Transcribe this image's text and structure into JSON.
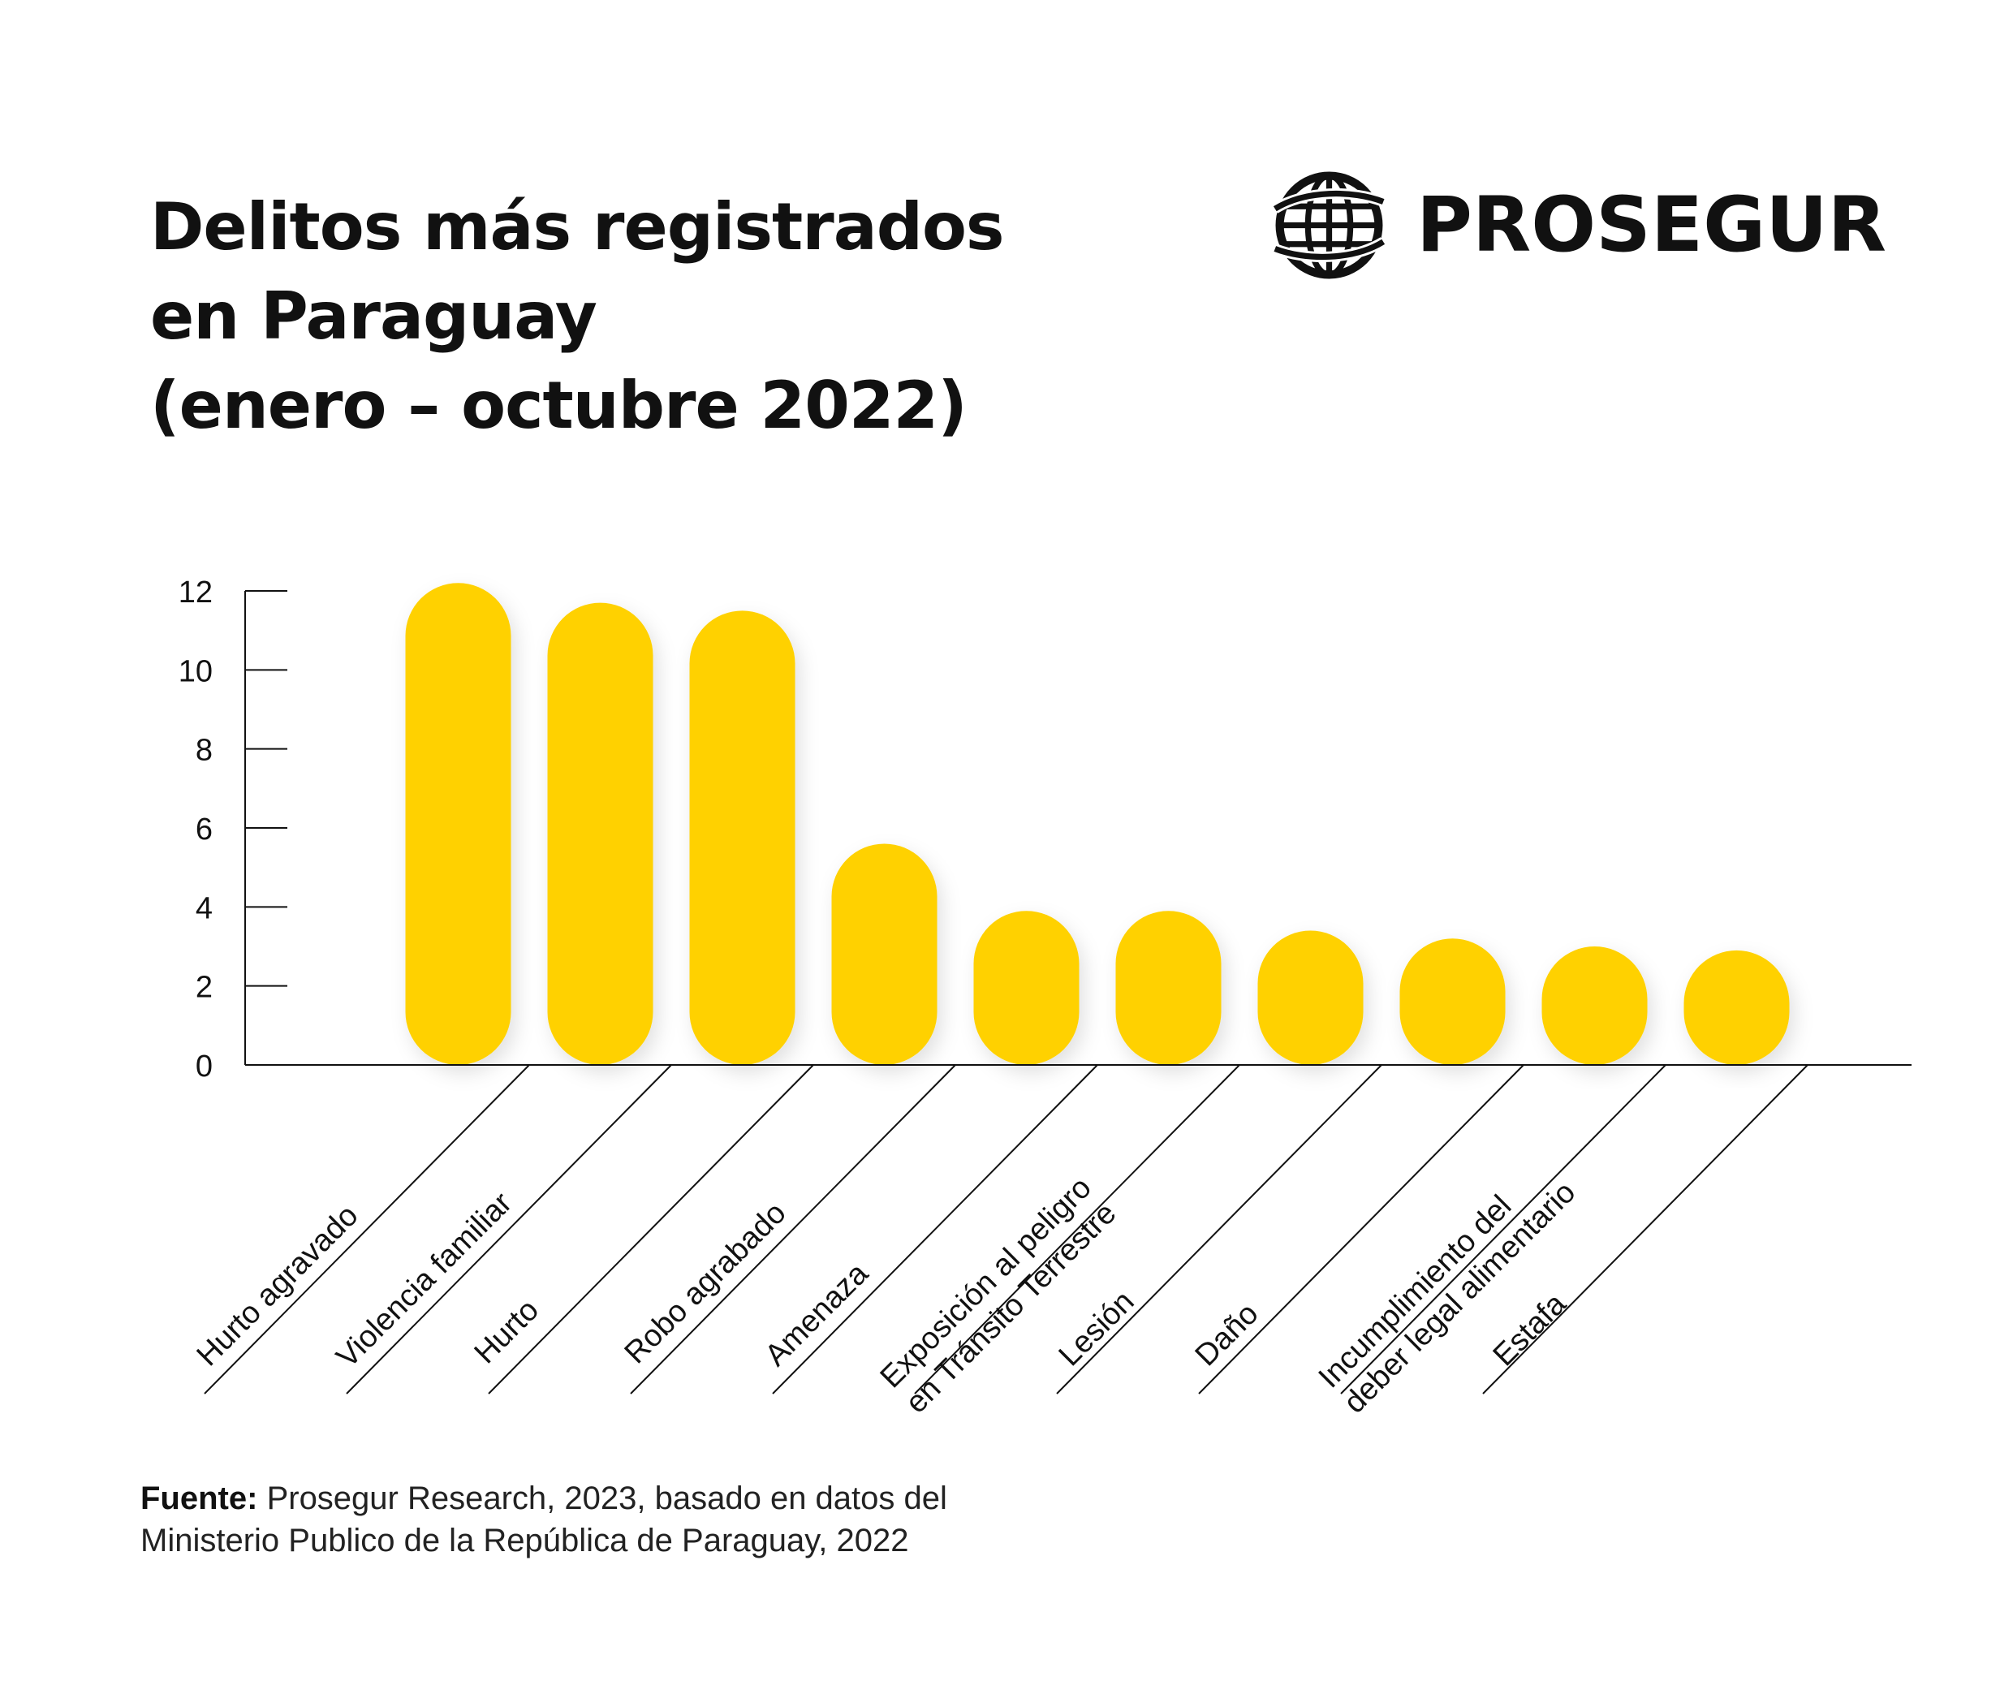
{
  "title": {
    "line1": "Delitos más registrados",
    "line2": "en Paraguay",
    "line3": "(enero – octubre 2022)"
  },
  "logo": {
    "brand": "PROSEGUR",
    "icon": "globe-icon"
  },
  "source": {
    "label": "Fuente:",
    "line1": "Prosegur Research, 2023, basado en datos del",
    "line2": "Ministerio Publico de la República de Paraguay, 2022"
  },
  "colors": {
    "bar": "#FFD100",
    "text": "#111111",
    "axis": "#111111"
  },
  "chart_data": {
    "type": "bar",
    "title": "Delitos más registrados en Paraguay (enero – octubre 2022)",
    "xlabel": "",
    "ylabel": "",
    "ylim": [
      0,
      12
    ],
    "yticks": [
      0,
      2,
      4,
      6,
      8,
      10,
      12
    ],
    "grid": false,
    "legend": "none",
    "categories": [
      "Hurto agravado",
      "Violencia familiar",
      "Hurto",
      "Robo agrabado",
      "Amenaza",
      "Exposición al peligro en Tránsito Terrestre",
      "Lesión",
      "Daño",
      "Incumplimiento del deber legal alimentario",
      "Estafa"
    ],
    "category_lines": [
      [
        "Hurto agravado"
      ],
      [
        "Violencia familiar"
      ],
      [
        "Hurto"
      ],
      [
        "Robo agrabado"
      ],
      [
        "Amenaza"
      ],
      [
        "Exposición al peligro",
        "en Tránsito Terrestre"
      ],
      [
        "Lesión"
      ],
      [
        "Daño"
      ],
      [
        "Incumplimiento del",
        "deber legal alimentario"
      ],
      [
        "Estafa"
      ]
    ],
    "values": [
      12.2,
      11.7,
      11.5,
      5.6,
      3.9,
      3.9,
      3.4,
      3.2,
      3.0,
      2.9
    ]
  }
}
